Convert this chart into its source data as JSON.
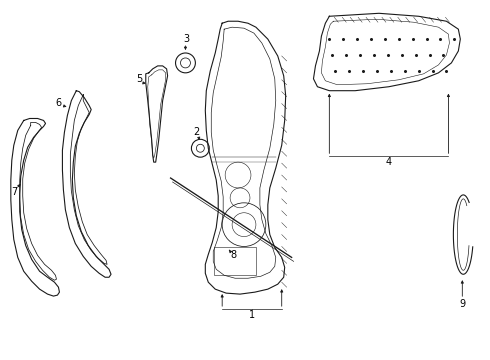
{
  "bg_color": "#ffffff",
  "line_color": "#1a1a1a",
  "figsize": [
    4.9,
    3.6
  ],
  "dpi": 100,
  "lw": 0.8
}
